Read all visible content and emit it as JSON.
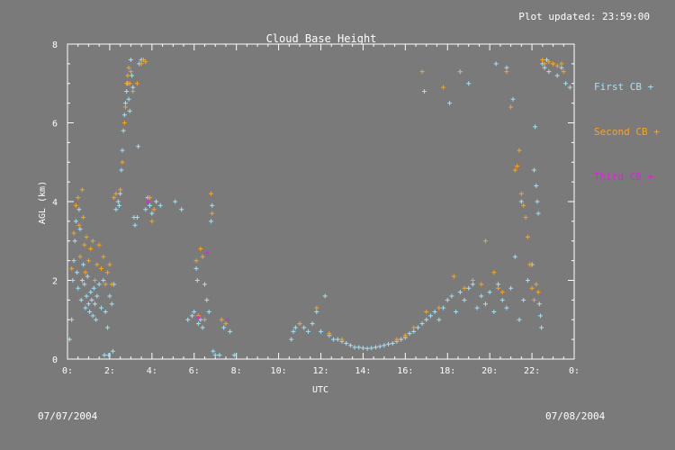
{
  "header": {
    "updated": "Plot updated: 23:59:00"
  },
  "footer": {
    "date_left": "07/07/2004",
    "date_right": "07/08/2004"
  },
  "colors": {
    "background": "#7a7a7a",
    "axes": "#ffffff",
    "first": "#a6e0f5",
    "second": "#f5a623",
    "third": "#e020e0"
  },
  "legend": [
    {
      "label": "First CB +",
      "color": "#a6e0f5"
    },
    {
      "label": "Second CB +",
      "color": "#f5a623"
    },
    {
      "label": "Third CB +",
      "color": "#e020e0"
    }
  ],
  "chart_data": {
    "type": "scatter",
    "title": "Cloud Base Height",
    "xlabel": "UTC",
    "ylabel": "AGL (km)",
    "xlim": [
      0,
      24
    ],
    "ylim": [
      0,
      8
    ],
    "xticks": [
      0,
      2,
      4,
      6,
      8,
      10,
      12,
      14,
      16,
      18,
      20,
      22,
      24
    ],
    "xtick_labels": [
      "0:",
      "2:",
      "4:",
      "6:",
      "8:",
      "10:",
      "12:",
      "14:",
      "16:",
      "18:",
      "20:",
      "22:",
      "0:"
    ],
    "yticks": [
      0,
      2,
      4,
      6,
      8
    ],
    "ytick_labels": [
      "0",
      "2",
      "4",
      "6",
      "8"
    ],
    "marker": "+",
    "series": [
      {
        "name": "First CB",
        "color": "#a6e0f5",
        "points": [
          [
            0.1,
            0.5
          ],
          [
            0.2,
            1.0
          ],
          [
            0.25,
            2.0
          ],
          [
            0.3,
            2.5
          ],
          [
            0.35,
            3.0
          ],
          [
            0.4,
            3.5
          ],
          [
            0.45,
            2.2
          ],
          [
            0.5,
            1.8
          ],
          [
            0.55,
            3.8
          ],
          [
            0.6,
            3.3
          ],
          [
            0.65,
            1.5
          ],
          [
            0.7,
            2.0
          ],
          [
            0.75,
            2.4
          ],
          [
            0.8,
            1.9
          ],
          [
            0.85,
            1.3
          ],
          [
            0.9,
            1.6
          ],
          [
            0.95,
            2.1
          ],
          [
            1.0,
            1.4
          ],
          [
            1.05,
            1.2
          ],
          [
            1.1,
            1.7
          ],
          [
            1.15,
            1.5
          ],
          [
            1.2,
            1.1
          ],
          [
            1.25,
            1.8
          ],
          [
            1.3,
            1.4
          ],
          [
            1.35,
            1.0
          ],
          [
            1.4,
            1.6
          ],
          [
            1.5,
            1.9
          ],
          [
            1.6,
            1.3
          ],
          [
            1.7,
            2.0
          ],
          [
            1.75,
            0.1
          ],
          [
            1.8,
            1.2
          ],
          [
            1.9,
            0.8
          ],
          [
            1.95,
            0.1
          ],
          [
            2.0,
            1.6
          ],
          [
            2.1,
            1.4
          ],
          [
            2.15,
            0.2
          ],
          [
            2.2,
            1.9
          ],
          [
            2.3,
            3.8
          ],
          [
            2.4,
            4.0
          ],
          [
            2.45,
            3.9
          ],
          [
            2.5,
            4.2
          ],
          [
            2.55,
            4.8
          ],
          [
            2.6,
            5.3
          ],
          [
            2.65,
            5.8
          ],
          [
            2.7,
            6.2
          ],
          [
            2.75,
            6.5
          ],
          [
            2.8,
            6.8
          ],
          [
            2.85,
            7.0
          ],
          [
            2.9,
            6.6
          ],
          [
            2.95,
            6.3
          ],
          [
            3.0,
            7.6
          ],
          [
            3.05,
            7.2
          ],
          [
            3.1,
            6.9
          ],
          [
            3.15,
            3.6
          ],
          [
            3.2,
            3.4
          ],
          [
            3.3,
            3.6
          ],
          [
            3.35,
            5.4
          ],
          [
            3.4,
            7.5
          ],
          [
            3.5,
            7.6
          ],
          [
            3.6,
            7.6
          ],
          [
            3.7,
            3.8
          ],
          [
            3.8,
            4.1
          ],
          [
            3.9,
            3.9
          ],
          [
            4.0,
            3.7
          ],
          [
            4.2,
            4.0
          ],
          [
            4.4,
            3.9
          ],
          [
            5.1,
            4.0
          ],
          [
            5.4,
            3.8
          ],
          [
            5.7,
            1.0
          ],
          [
            5.9,
            1.1
          ],
          [
            6.0,
            1.2
          ],
          [
            6.1,
            2.3
          ],
          [
            6.15,
            2.0
          ],
          [
            6.2,
            0.9
          ],
          [
            6.3,
            1.0
          ],
          [
            6.4,
            0.8
          ],
          [
            6.5,
            1.9
          ],
          [
            6.6,
            1.5
          ],
          [
            6.7,
            1.2
          ],
          [
            6.8,
            3.5
          ],
          [
            6.85,
            3.9
          ],
          [
            6.9,
            0.2
          ],
          [
            7.0,
            0.1
          ],
          [
            7.2,
            0.1
          ],
          [
            7.4,
            0.8
          ],
          [
            7.7,
            0.7
          ],
          [
            7.9,
            0.1
          ],
          [
            10.6,
            0.5
          ],
          [
            10.7,
            0.7
          ],
          [
            10.8,
            0.8
          ],
          [
            11.0,
            0.9
          ],
          [
            11.2,
            0.8
          ],
          [
            11.4,
            0.7
          ],
          [
            11.6,
            0.9
          ],
          [
            11.8,
            1.2
          ],
          [
            12.0,
            0.7
          ],
          [
            12.2,
            1.6
          ],
          [
            12.4,
            0.6
          ],
          [
            12.6,
            0.5
          ],
          [
            12.8,
            0.5
          ],
          [
            13.0,
            0.45
          ],
          [
            13.2,
            0.4
          ],
          [
            13.4,
            0.35
          ],
          [
            13.6,
            0.3
          ],
          [
            13.8,
            0.3
          ],
          [
            14.0,
            0.28
          ],
          [
            14.2,
            0.27
          ],
          [
            14.4,
            0.28
          ],
          [
            14.6,
            0.3
          ],
          [
            14.8,
            0.32
          ],
          [
            15.0,
            0.35
          ],
          [
            15.2,
            0.38
          ],
          [
            15.4,
            0.4
          ],
          [
            15.6,
            0.45
          ],
          [
            15.8,
            0.5
          ],
          [
            16.0,
            0.55
          ],
          [
            16.2,
            0.65
          ],
          [
            16.4,
            0.7
          ],
          [
            16.6,
            0.8
          ],
          [
            16.8,
            0.9
          ],
          [
            17.0,
            1.0
          ],
          [
            17.2,
            1.1
          ],
          [
            17.4,
            1.2
          ],
          [
            17.6,
            1.0
          ],
          [
            17.8,
            1.3
          ],
          [
            18.0,
            1.5
          ],
          [
            18.2,
            1.6
          ],
          [
            18.4,
            1.2
          ],
          [
            18.6,
            1.7
          ],
          [
            18.8,
            1.5
          ],
          [
            19.0,
            1.8
          ],
          [
            19.2,
            1.9
          ],
          [
            19.4,
            1.3
          ],
          [
            19.6,
            1.6
          ],
          [
            19.8,
            1.4
          ],
          [
            20.0,
            1.7
          ],
          [
            20.2,
            1.2
          ],
          [
            20.4,
            1.9
          ],
          [
            20.6,
            1.5
          ],
          [
            20.8,
            1.3
          ],
          [
            21.0,
            1.8
          ],
          [
            21.2,
            2.6
          ],
          [
            21.4,
            1.0
          ],
          [
            21.6,
            1.5
          ],
          [
            21.8,
            2.0
          ],
          [
            22.0,
            2.4
          ],
          [
            22.1,
            4.8
          ],
          [
            22.15,
            5.9
          ],
          [
            22.2,
            4.4
          ],
          [
            22.25,
            4.0
          ],
          [
            22.3,
            3.7
          ],
          [
            22.35,
            1.4
          ],
          [
            22.4,
            1.1
          ],
          [
            22.45,
            0.8
          ],
          [
            22.5,
            7.5
          ],
          [
            22.6,
            7.4
          ],
          [
            22.7,
            7.6
          ],
          [
            22.8,
            7.3
          ],
          [
            23.0,
            7.5
          ],
          [
            23.2,
            7.2
          ],
          [
            23.4,
            7.4
          ],
          [
            23.6,
            7.0
          ],
          [
            23.8,
            6.9
          ],
          [
            19.0,
            7.0
          ],
          [
            18.6,
            7.3
          ],
          [
            18.1,
            6.5
          ],
          [
            20.3,
            7.5
          ],
          [
            21.1,
            6.6
          ],
          [
            21.5,
            4.0
          ],
          [
            16.9,
            6.8
          ],
          [
            20.8,
            7.4
          ]
        ]
      },
      {
        "name": "Second CB",
        "color": "#f5a623",
        "points": [
          [
            0.2,
            2.3
          ],
          [
            0.3,
            3.2
          ],
          [
            0.4,
            3.9
          ],
          [
            0.5,
            4.1
          ],
          [
            0.55,
            3.4
          ],
          [
            0.6,
            2.6
          ],
          [
            0.7,
            4.3
          ],
          [
            0.75,
            3.6
          ],
          [
            0.8,
            2.9
          ],
          [
            0.85,
            2.2
          ],
          [
            0.9,
            3.1
          ],
          [
            1.0,
            2.5
          ],
          [
            1.1,
            2.8
          ],
          [
            1.2,
            3.0
          ],
          [
            1.3,
            2.0
          ],
          [
            1.4,
            2.4
          ],
          [
            1.5,
            2.9
          ],
          [
            1.6,
            2.3
          ],
          [
            1.7,
            2.6
          ],
          [
            1.8,
            1.9
          ],
          [
            1.9,
            2.2
          ],
          [
            2.0,
            2.4
          ],
          [
            2.1,
            1.9
          ],
          [
            2.2,
            4.1
          ],
          [
            2.3,
            4.2
          ],
          [
            2.5,
            4.3
          ],
          [
            2.6,
            5.0
          ],
          [
            2.7,
            6.0
          ],
          [
            2.75,
            6.4
          ],
          [
            2.8,
            7.0
          ],
          [
            2.85,
            7.2
          ],
          [
            2.9,
            7.4
          ],
          [
            2.95,
            7.0
          ],
          [
            3.0,
            7.3
          ],
          [
            3.1,
            6.8
          ],
          [
            3.3,
            7.0
          ],
          [
            3.5,
            7.5
          ],
          [
            3.6,
            7.6
          ],
          [
            3.7,
            7.55
          ],
          [
            3.9,
            4.1
          ],
          [
            4.0,
            3.5
          ],
          [
            4.1,
            3.8
          ],
          [
            6.1,
            2.5
          ],
          [
            6.2,
            1.1
          ],
          [
            6.3,
            2.8
          ],
          [
            6.4,
            2.6
          ],
          [
            6.5,
            1.0
          ],
          [
            6.8,
            4.2
          ],
          [
            6.85,
            3.7
          ],
          [
            7.3,
            1.0
          ],
          [
            7.5,
            0.9
          ],
          [
            11.0,
            0.9
          ],
          [
            11.8,
            1.3
          ],
          [
            12.4,
            0.65
          ],
          [
            13.0,
            0.5
          ],
          [
            15.6,
            0.5
          ],
          [
            16.0,
            0.6
          ],
          [
            16.4,
            0.8
          ],
          [
            16.8,
            7.3
          ],
          [
            17.0,
            1.2
          ],
          [
            17.6,
            1.3
          ],
          [
            17.8,
            6.9
          ],
          [
            18.3,
            2.1
          ],
          [
            18.6,
            7.3
          ],
          [
            18.8,
            1.8
          ],
          [
            19.2,
            2.0
          ],
          [
            19.6,
            1.9
          ],
          [
            19.8,
            3.0
          ],
          [
            20.2,
            2.2
          ],
          [
            20.4,
            1.8
          ],
          [
            20.6,
            1.7
          ],
          [
            20.8,
            7.3
          ],
          [
            21.0,
            6.4
          ],
          [
            21.2,
            4.8
          ],
          [
            21.4,
            5.3
          ],
          [
            21.6,
            3.9
          ],
          [
            21.7,
            3.6
          ],
          [
            21.8,
            3.1
          ],
          [
            21.9,
            2.4
          ],
          [
            22.0,
            1.8
          ],
          [
            22.1,
            1.5
          ],
          [
            22.2,
            1.9
          ],
          [
            22.3,
            1.7
          ],
          [
            22.5,
            7.6
          ],
          [
            22.6,
            7.5
          ],
          [
            22.8,
            7.55
          ],
          [
            23.0,
            7.5
          ],
          [
            23.2,
            7.45
          ],
          [
            23.4,
            7.5
          ],
          [
            23.5,
            7.3
          ],
          [
            21.3,
            4.9
          ],
          [
            21.5,
            4.2
          ]
        ]
      },
      {
        "name": "Third CB",
        "color": "#e020e0",
        "points": [
          [
            6.2,
            1.05
          ],
          [
            6.6,
            2.7
          ],
          [
            7.6,
            1.0
          ],
          [
            3.8,
            4.0
          ]
        ]
      }
    ]
  }
}
